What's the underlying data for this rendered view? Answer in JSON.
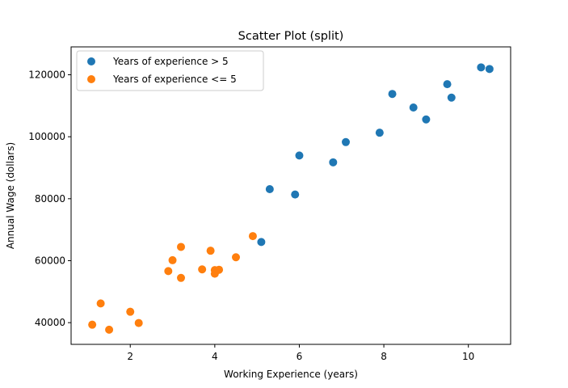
{
  "chart_data": {
    "type": "scatter",
    "title": "Scatter Plot (split)",
    "xlabel": "Working Experience (years)",
    "ylabel": "Annual Wage (dollars)",
    "xlim": [
      0.6,
      11.0
    ],
    "ylim": [
      33000,
      129000
    ],
    "xticks": [
      2,
      4,
      6,
      8,
      10
    ],
    "yticks": [
      40000,
      60000,
      80000,
      100000,
      120000
    ],
    "grid": false,
    "legend_position": "top-left",
    "series": [
      {
        "name": "Years of experience > 5",
        "color": "#1f77b4",
        "points": [
          [
            5.1,
            66029
          ],
          [
            5.3,
            83088
          ],
          [
            5.9,
            81363
          ],
          [
            6.0,
            93940
          ],
          [
            6.8,
            91738
          ],
          [
            7.1,
            98273
          ],
          [
            7.9,
            101302
          ],
          [
            8.2,
            113812
          ],
          [
            8.7,
            109431
          ],
          [
            9.0,
            105582
          ],
          [
            9.5,
            116969
          ],
          [
            9.6,
            112635
          ],
          [
            10.3,
            122391
          ],
          [
            10.5,
            121872
          ]
        ]
      },
      {
        "name": "Years of experience <= 5",
        "color": "#ff7f0e",
        "points": [
          [
            1.1,
            39343
          ],
          [
            1.3,
            46205
          ],
          [
            1.5,
            37731
          ],
          [
            2.0,
            43525
          ],
          [
            2.2,
            39891
          ],
          [
            2.9,
            56642
          ],
          [
            3.0,
            60150
          ],
          [
            3.2,
            54445
          ],
          [
            3.2,
            64445
          ],
          [
            3.7,
            57189
          ],
          [
            3.9,
            63218
          ],
          [
            4.0,
            55794
          ],
          [
            4.0,
            56957
          ],
          [
            4.1,
            57081
          ],
          [
            4.5,
            61111
          ],
          [
            4.9,
            67938
          ]
        ]
      }
    ]
  }
}
